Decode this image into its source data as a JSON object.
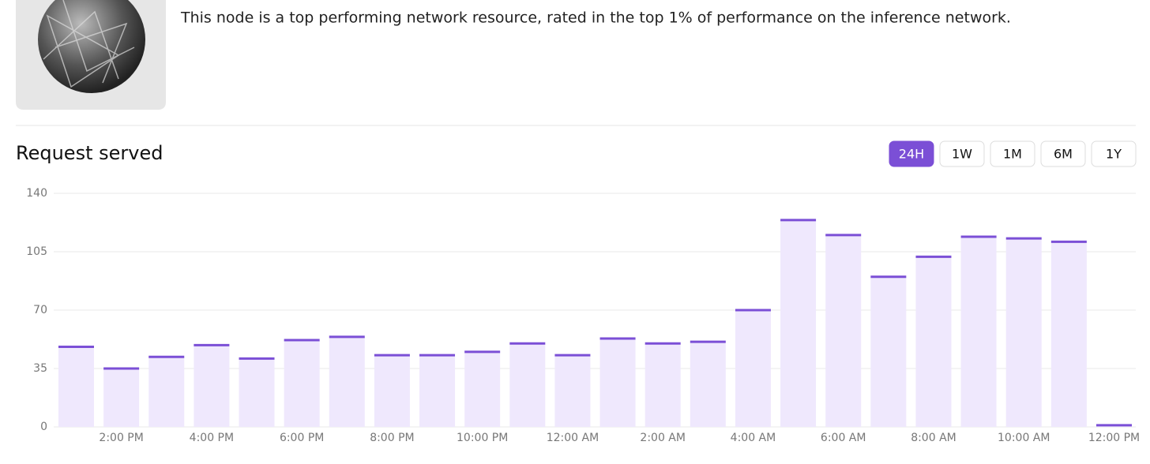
{
  "header": {
    "description": "This node is a top performing network resource, rated in the top 1% of performance on the inference network."
  },
  "section": {
    "title": "Request served",
    "ranges": [
      "24H",
      "1W",
      "1M",
      "6M",
      "1Y"
    ]
  },
  "chart_data": {
    "type": "bar",
    "categories": [
      null,
      "2:00 PM",
      null,
      "4:00 PM",
      null,
      "6:00 PM",
      null,
      "8:00 PM",
      null,
      "10:00 PM",
      null,
      "12:00 AM",
      null,
      "2:00 AM",
      null,
      "4:00 AM",
      null,
      "6:00 AM",
      null,
      "8:00 AM",
      null,
      "10:00 AM",
      null,
      "12:00 PM"
    ],
    "values": [
      48,
      35,
      42,
      49,
      41,
      52,
      54,
      43,
      43,
      45,
      50,
      43,
      53,
      50,
      51,
      70,
      124,
      115,
      90,
      102,
      114,
      113,
      111,
      1
    ],
    "color": "#7b4fd6",
    "fill": "#efe8fd",
    "ylim": [
      0,
      140
    ],
    "yticks": [
      0,
      35,
      70,
      105,
      140
    ],
    "grid": true
  }
}
